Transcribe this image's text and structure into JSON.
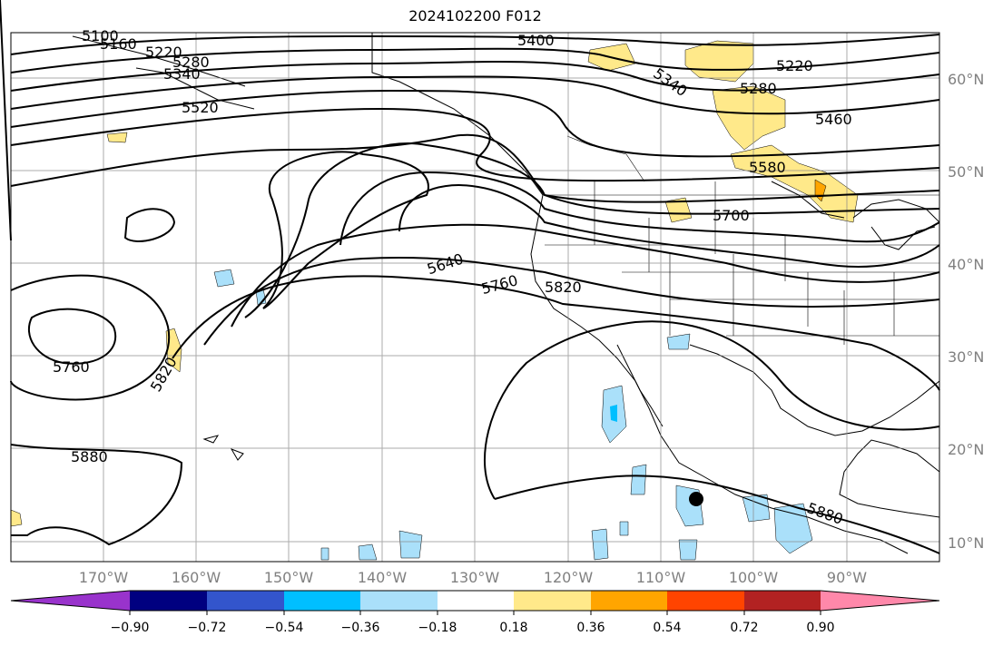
{
  "title": "2024102200 F012",
  "map": {
    "lat_labels": [
      "60°N",
      "50°N",
      "40°N",
      "30°N",
      "20°N",
      "10°N"
    ],
    "lon_labels": [
      "170°W",
      "160°W",
      "150°W",
      "140°W",
      "130°W",
      "120°W",
      "110°W",
      "100°W",
      "90°W"
    ],
    "contour_labels": [
      "5100",
      "5160",
      "5220",
      "5280",
      "5340",
      "5520",
      "5400",
      "5340",
      "5220",
      "5280",
      "5460",
      "5580",
      "5700",
      "5640",
      "5760",
      "5820",
      "5760",
      "5820",
      "5880",
      "5880"
    ],
    "marker": "filled-circle",
    "grid": true
  },
  "colorbar": {
    "tick_labels": [
      "−0.90",
      "−0.72",
      "−0.54",
      "−0.36",
      "−0.18",
      "0.18",
      "0.36",
      "0.54",
      "0.72",
      "0.90"
    ],
    "colors": [
      "#9933cc",
      "#000080",
      "#3355cc",
      "#00bfff",
      "#aae0fa",
      "#ffffff",
      "#ffe98a",
      "#ffa500",
      "#ff4400",
      "#b22222",
      "#ff88aa"
    ]
  }
}
